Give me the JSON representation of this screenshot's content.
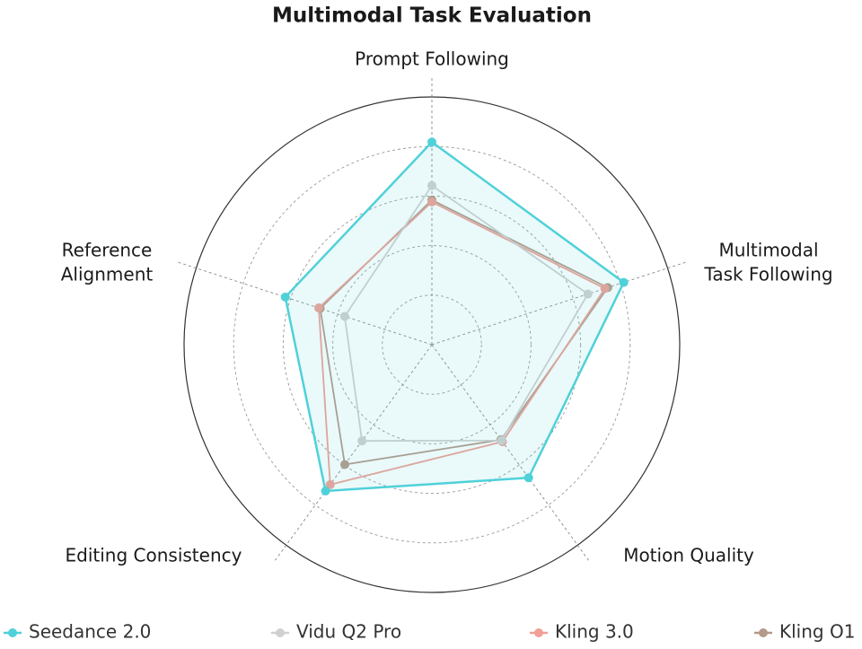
{
  "chart_data": {
    "type": "radar",
    "title": "Multimodal Task Evaluation",
    "categories": [
      "Prompt Following",
      "Multimodal\nTask Following",
      "Motion Quality",
      "Editing Consistency",
      "Reference\nAlignment"
    ],
    "rlim": [
      0,
      5
    ],
    "rticks": [
      1,
      2,
      3,
      4,
      5
    ],
    "grid": true,
    "legend": "bottom",
    "series": [
      {
        "name": "Seedance 2.0",
        "color": "#4fd1d9",
        "area": true,
        "values": [
          4.09,
          4.07,
          3.32,
          3.65,
          3.11
        ]
      },
      {
        "name": "Vidu Q2 Pro",
        "color": "#d0d0d0",
        "values": [
          3.21,
          3.31,
          2.39,
          2.4,
          1.85
        ]
      },
      {
        "name": "Kling 3.0",
        "color": "#f0a096",
        "values": [
          2.88,
          3.67,
          2.42,
          3.49,
          2.4
        ]
      },
      {
        "name": "Kling O1",
        "color": "#b39a8a",
        "values": [
          2.92,
          3.73,
          2.37,
          2.99,
          2.37
        ]
      }
    ]
  }
}
